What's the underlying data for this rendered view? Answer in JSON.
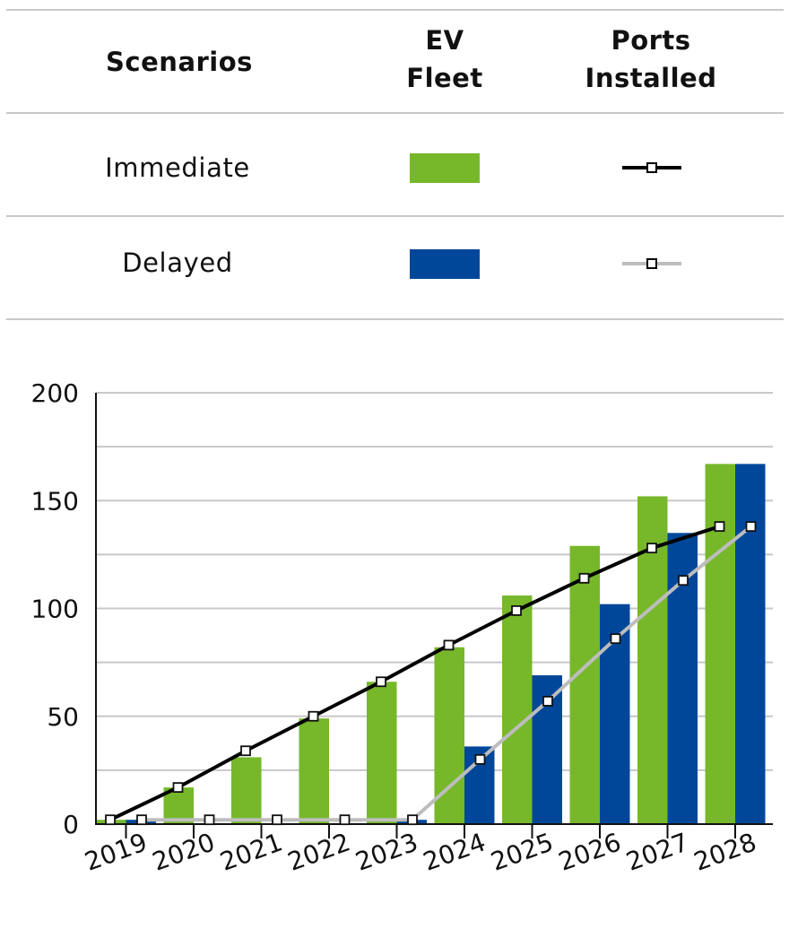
{
  "legend_table": {
    "headers": {
      "scenarios": "Scenarios",
      "ev_fleet": "EV Fleet",
      "ports_installed": "Ports Installed"
    },
    "rows": [
      {
        "label": "Immediate",
        "bar_color": "#76b82a",
        "line_color": "#000000"
      },
      {
        "label": "Delayed",
        "bar_color": "#00479a",
        "line_color": "#bdbdbd"
      }
    ]
  },
  "chart_data": {
    "type": "bar",
    "categories": [
      "2019",
      "2020",
      "2021",
      "2022",
      "2023",
      "2024",
      "2025",
      "2026",
      "2027",
      "2028"
    ],
    "series": [
      {
        "name": "Immediate",
        "kind": "bar",
        "metric": "EV Fleet",
        "color": "#76b82a",
        "values": [
          2,
          17,
          31,
          49,
          66,
          82,
          106,
          129,
          152,
          167
        ]
      },
      {
        "name": "Delayed",
        "kind": "bar",
        "metric": "EV Fleet",
        "color": "#00479a",
        "values": [
          2,
          0,
          0,
          0,
          2,
          36,
          69,
          102,
          135,
          167
        ]
      },
      {
        "name": "Immediate",
        "kind": "line",
        "metric": "Ports Installed",
        "color": "#000000",
        "values": [
          2,
          17,
          34,
          50,
          66,
          83,
          99,
          114,
          128,
          138
        ]
      },
      {
        "name": "Delayed",
        "kind": "line",
        "metric": "Ports Installed",
        "color": "#bdbdbd",
        "values": [
          2,
          2,
          2,
          2,
          2,
          30,
          57,
          86,
          113,
          138
        ]
      }
    ],
    "y_ticks": [
      0,
      50,
      100,
      150,
      200
    ],
    "ylim": [
      0,
      200
    ],
    "grid": true,
    "legend": "top"
  }
}
